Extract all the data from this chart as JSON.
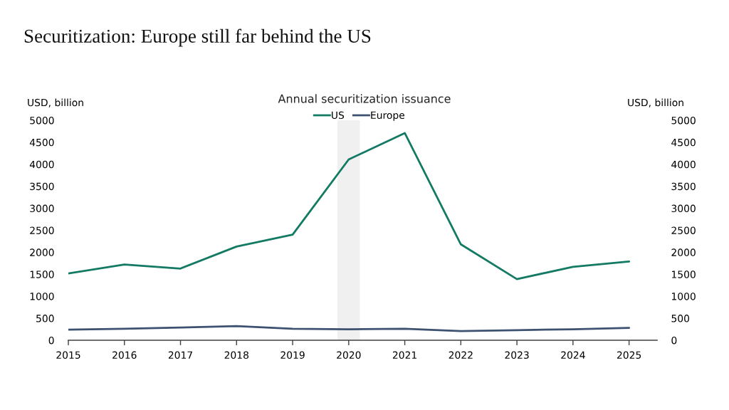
{
  "chart_data": {
    "type": "line",
    "title": "Securitization: Europe still far behind the US",
    "subtitle": "Annual securitization issuance",
    "ylabel": "USD, billion",
    "y2label": "USD, billion",
    "x": [
      2015,
      2016,
      2017,
      2018,
      2019,
      2020,
      2021,
      2022,
      2023,
      2024,
      2025
    ],
    "series": [
      {
        "name": "US",
        "color": "#137a63",
        "values": [
          1520,
          1720,
          1630,
          2130,
          2400,
          4110,
          4710,
          2180,
          1390,
          1670,
          1790
        ]
      },
      {
        "name": "Europe",
        "color": "#3d5170",
        "values": [
          240,
          260,
          290,
          320,
          260,
          250,
          260,
          210,
          230,
          250,
          280
        ]
      }
    ],
    "xlim": [
      2015,
      2025.5
    ],
    "xticks": [
      2015,
      2016,
      2017,
      2018,
      2019,
      2020,
      2021,
      2022,
      2023,
      2024,
      2025
    ],
    "ylim": [
      0,
      5000
    ],
    "yticks": [
      0,
      500,
      1000,
      1500,
      2000,
      2500,
      3000,
      3500,
      4000,
      4500,
      5000
    ],
    "y2lim": [
      0,
      5000
    ],
    "y2ticks": [
      0,
      500,
      1000,
      1500,
      2000,
      2500,
      3000,
      3500,
      4000,
      4500,
      5000
    ],
    "bands": [
      {
        "axis": "x",
        "from": 2019.8,
        "to": 2020.2,
        "color": "#f0f0f0"
      }
    ],
    "grid": false,
    "legend": "top",
    "marker": "none",
    "line_style": "solid"
  }
}
